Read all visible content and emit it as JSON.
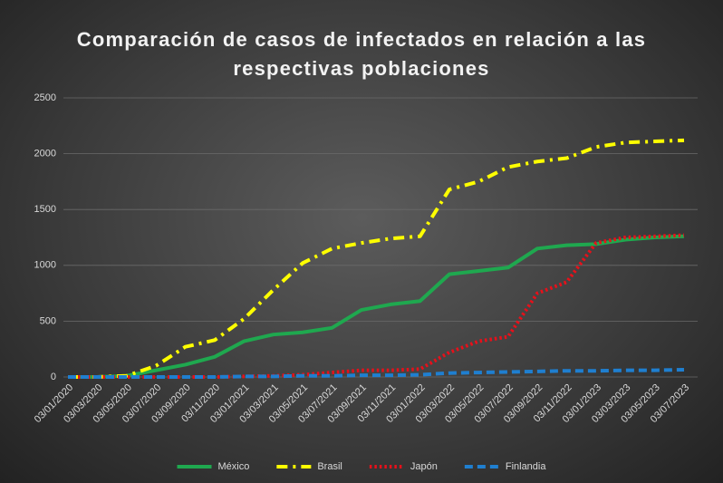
{
  "chart_data": {
    "type": "line",
    "title": "Comparación de casos de infectados en relación a las respectivas poblaciones",
    "categories": [
      "03/01/2020",
      "03/03/2020",
      "03/05/2020",
      "03/07/2020",
      "03/09/2020",
      "03/11/2020",
      "03/01/2021",
      "03/03/2021",
      "03/05/2021",
      "03/07/2021",
      "03/09/2021",
      "03/11/2021",
      "03/01/2022",
      "03/03/2022",
      "03/05/2022",
      "03/07/2022",
      "03/09/2022",
      "03/11/2022",
      "03/01/2023",
      "03/03/2023",
      "03/05/2023",
      "03/07/2023"
    ],
    "series": [
      {
        "name": "México",
        "color": "#1fa84f",
        "style": "solid",
        "values": [
          0,
          0,
          10,
          60,
          110,
          180,
          320,
          380,
          400,
          440,
          600,
          650,
          680,
          920,
          950,
          980,
          1150,
          1180,
          1190,
          1230,
          1250,
          1260
        ]
      },
      {
        "name": "Brasil",
        "color": "#ffff00",
        "style": "dash-dot",
        "values": [
          0,
          0,
          10,
          100,
          270,
          330,
          520,
          780,
          1020,
          1150,
          1200,
          1240,
          1260,
          1680,
          1750,
          1880,
          1930,
          1960,
          2060,
          2100,
          2110,
          2120
        ]
      },
      {
        "name": "Japón",
        "color": "#e8101a",
        "style": "dotted",
        "values": [
          0,
          0,
          0,
          0,
          0,
          0,
          5,
          10,
          20,
          40,
          60,
          60,
          70,
          220,
          320,
          360,
          750,
          850,
          1200,
          1250,
          1260,
          1270
        ]
      },
      {
        "name": "Finlandia",
        "color": "#1f7fd0",
        "style": "dashed",
        "values": [
          0,
          0,
          0,
          0,
          0,
          0,
          5,
          5,
          10,
          10,
          15,
          15,
          20,
          35,
          40,
          45,
          50,
          55,
          55,
          60,
          60,
          65
        ]
      }
    ],
    "ylim": [
      0,
      2500
    ],
    "yticks": [
      0,
      500,
      1000,
      1500,
      2000,
      2500
    ],
    "grid": true,
    "legend": "bottom"
  }
}
